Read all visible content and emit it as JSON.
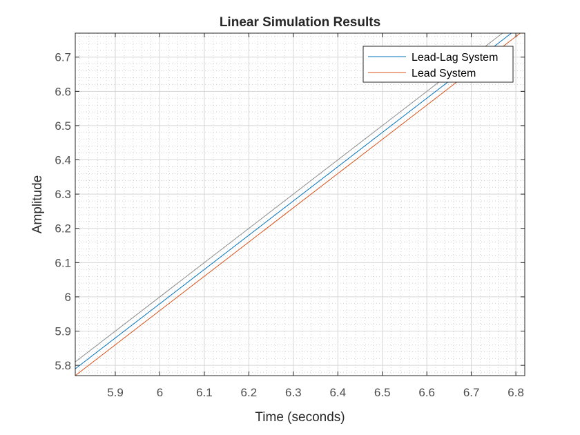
{
  "chart_data": {
    "type": "line",
    "title": "Linear Simulation Results",
    "xlabel": "Time (seconds)",
    "ylabel": "Amplitude",
    "xlim": [
      5.81,
      6.82
    ],
    "ylim": [
      5.77,
      6.77
    ],
    "xticks": [
      5.9,
      6,
      6.1,
      6.2,
      6.3,
      6.4,
      6.5,
      6.6,
      6.7,
      6.8
    ],
    "xtick_labels": [
      "5.9",
      "6",
      "6.1",
      "6.2",
      "6.3",
      "6.4",
      "6.5",
      "6.6",
      "6.7",
      "6.8"
    ],
    "yticks": [
      5.8,
      5.9,
      6,
      6.1,
      6.2,
      6.3,
      6.4,
      6.5,
      6.6,
      6.7
    ],
    "ytick_labels": [
      "5.8",
      "5.9",
      "6",
      "6.1",
      "6.2",
      "6.3",
      "6.4",
      "6.5",
      "6.6",
      "6.7"
    ],
    "grid": true,
    "minor_grid": true,
    "legend_position": "top-right",
    "series": [
      {
        "name": "",
        "color": "#8c8c8c",
        "x": [
          5.81,
          6.77
        ],
        "y": [
          5.81,
          6.77
        ]
      },
      {
        "name": "Lead-Lag System",
        "color": "#0072bd",
        "x": [
          5.81,
          6.79
        ],
        "y": [
          5.79,
          6.77
        ]
      },
      {
        "name": "Lead System",
        "color": "#d95319",
        "x": [
          5.81,
          6.81
        ],
        "y": [
          5.77,
          6.77
        ]
      }
    ],
    "legend": [
      {
        "label": "Lead-Lag System",
        "color": "#0072bd"
      },
      {
        "label": "Lead System",
        "color": "#d95319"
      }
    ]
  }
}
